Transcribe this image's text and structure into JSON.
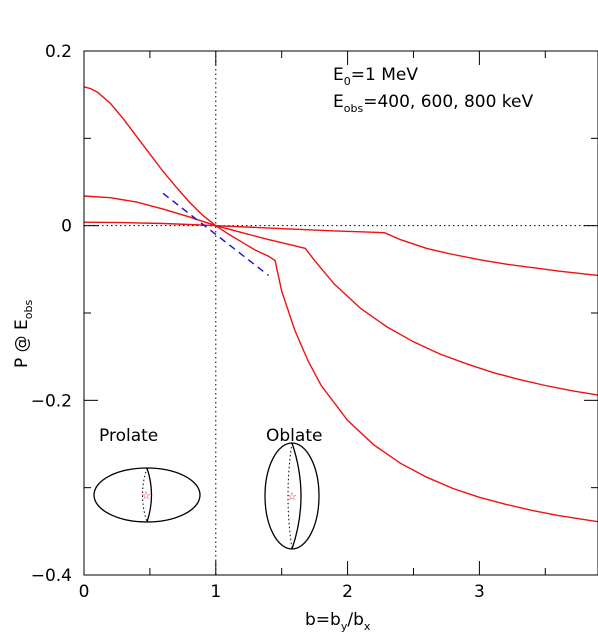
{
  "chart_data": {
    "type": "line",
    "xlim": [
      0,
      3.9
    ],
    "ylim": [
      -0.4,
      0.2
    ],
    "x_ticks": [
      {
        "value": 0,
        "label": "0"
      },
      {
        "value": 1,
        "label": "1"
      },
      {
        "value": 2,
        "label": "2"
      },
      {
        "value": 3,
        "label": "3"
      }
    ],
    "y_ticks": [
      {
        "value": 0.2,
        "label": "0.2"
      },
      {
        "value": 0,
        "label": "0"
      },
      {
        "value": -0.2,
        "label": "−0.2"
      },
      {
        "value": -0.4,
        "label": "−0.4"
      }
    ],
    "xlabel": {
      "main": "b=b",
      "sub1": "y",
      "mid": "/b",
      "sub2": "x"
    },
    "ylabel": {
      "main": "P @ E",
      "sub": "obs"
    },
    "annotations": {
      "e0": {
        "main": "E",
        "sub": "0",
        "rest": "=1 MeV"
      },
      "eobs": {
        "main": "E",
        "sub": "obs",
        "rest": "=400, 600, 800 keV"
      },
      "prolate": "Prolate",
      "oblate": "Oblate"
    },
    "reference_lines": {
      "x": 1,
      "y": 0,
      "style": "dotted"
    },
    "colors": {
      "series": "#ee1111",
      "tangent": "#1111cc",
      "marker": "#ee1111"
    },
    "series": [
      {
        "color": "#ee1111",
        "points": [
          [
            0,
            0.159
          ],
          [
            0.05,
            0.157
          ],
          [
            0.1,
            0.153
          ],
          [
            0.2,
            0.14
          ],
          [
            0.3,
            0.122
          ],
          [
            0.4,
            0.102
          ],
          [
            0.5,
            0.082
          ],
          [
            0.6,
            0.062
          ],
          [
            0.7,
            0.044
          ],
          [
            0.8,
            0.027
          ],
          [
            0.9,
            0.012
          ],
          [
            1.0,
            0.0
          ],
          [
            1.1,
            -0.01
          ],
          [
            1.2,
            -0.019
          ],
          [
            1.3,
            -0.028
          ],
          [
            1.4,
            -0.035
          ],
          [
            1.45,
            -0.04
          ],
          [
            1.5,
            -0.075
          ],
          [
            1.6,
            -0.12
          ],
          [
            1.7,
            -0.155
          ],
          [
            1.8,
            -0.183
          ],
          [
            2.0,
            -0.223
          ],
          [
            2.2,
            -0.251
          ],
          [
            2.4,
            -0.272
          ],
          [
            2.6,
            -0.288
          ],
          [
            2.8,
            -0.301
          ],
          [
            3.0,
            -0.311
          ],
          [
            3.2,
            -0.319
          ],
          [
            3.4,
            -0.326
          ],
          [
            3.6,
            -0.332
          ],
          [
            3.9,
            -0.339
          ]
        ]
      },
      {
        "color": "#ee1111",
        "points": [
          [
            0,
            0.034
          ],
          [
            0.2,
            0.032
          ],
          [
            0.4,
            0.027
          ],
          [
            0.6,
            0.019
          ],
          [
            0.8,
            0.01
          ],
          [
            1.0,
            0.0
          ],
          [
            1.2,
            -0.008
          ],
          [
            1.4,
            -0.016
          ],
          [
            1.6,
            -0.023
          ],
          [
            1.68,
            -0.026
          ],
          [
            1.75,
            -0.04
          ],
          [
            1.9,
            -0.067
          ],
          [
            2.1,
            -0.095
          ],
          [
            2.3,
            -0.116
          ],
          [
            2.5,
            -0.133
          ],
          [
            2.7,
            -0.147
          ],
          [
            2.9,
            -0.158
          ],
          [
            3.1,
            -0.168
          ],
          [
            3.3,
            -0.176
          ],
          [
            3.5,
            -0.183
          ],
          [
            3.7,
            -0.189
          ],
          [
            3.9,
            -0.194
          ]
        ]
      },
      {
        "color": "#ee1111",
        "points": [
          [
            0,
            0.004
          ],
          [
            0.3,
            0.0035
          ],
          [
            0.6,
            0.0025
          ],
          [
            0.8,
            0.0013
          ],
          [
            1.0,
            0.0
          ],
          [
            1.3,
            -0.002
          ],
          [
            1.6,
            -0.004
          ],
          [
            1.9,
            -0.006
          ],
          [
            2.1,
            -0.007
          ],
          [
            2.28,
            -0.008
          ],
          [
            2.4,
            -0.016
          ],
          [
            2.6,
            -0.026
          ],
          [
            2.8,
            -0.033
          ],
          [
            3.0,
            -0.039
          ],
          [
            3.2,
            -0.044
          ],
          [
            3.4,
            -0.048
          ],
          [
            3.6,
            -0.052
          ],
          [
            3.9,
            -0.057
          ]
        ]
      }
    ],
    "tangent_line": {
      "color": "#1111cc",
      "style": "dashed",
      "points": [
        [
          0.6,
          0.037
        ],
        [
          1.4,
          -0.057
        ]
      ]
    }
  }
}
